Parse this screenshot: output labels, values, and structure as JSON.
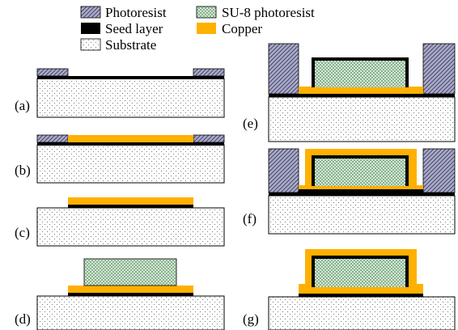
{
  "legend": {
    "photoresist": "Photoresist",
    "su8": "SU-8 photoresist",
    "seed": "Seed layer",
    "copper": "Copper",
    "substrate": "Substrate"
  },
  "steps": {
    "a": "(a)",
    "b": "(b)",
    "c": "(c)",
    "d": "(d)",
    "e": "(e)",
    "f": "(f)",
    "g": "(g)"
  },
  "colors": {
    "copper": "#FFB000",
    "seed": "#000000",
    "photoresist_fill": "#A8A8C8",
    "su8_fill": "#C8E8C8",
    "substrate_fill": "#FFFFFF"
  }
}
